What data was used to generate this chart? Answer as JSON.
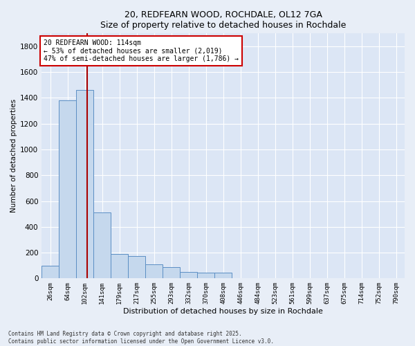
{
  "title_line1": "20, REDFEARN WOOD, ROCHDALE, OL12 7GA",
  "title_line2": "Size of property relative to detached houses in Rochdale",
  "xlabel": "Distribution of detached houses by size in Rochdale",
  "ylabel": "Number of detached properties",
  "footnote1": "Contains HM Land Registry data © Crown copyright and database right 2025.",
  "footnote2": "Contains public sector information licensed under the Open Government Licence v3.0.",
  "categories": [
    "26sqm",
    "64sqm",
    "102sqm",
    "141sqm",
    "179sqm",
    "217sqm",
    "255sqm",
    "293sqm",
    "332sqm",
    "370sqm",
    "408sqm",
    "446sqm",
    "484sqm",
    "523sqm",
    "561sqm",
    "599sqm",
    "637sqm",
    "675sqm",
    "714sqm",
    "752sqm",
    "790sqm"
  ],
  "values": [
    100,
    1380,
    1460,
    510,
    190,
    175,
    110,
    90,
    50,
    45,
    45,
    0,
    0,
    0,
    0,
    0,
    0,
    0,
    0,
    0,
    0
  ],
  "bar_color": "#c5d8ed",
  "bar_edge_color": "#5b8ec4",
  "ylim": [
    0,
    1900
  ],
  "yticks": [
    0,
    200,
    400,
    600,
    800,
    1000,
    1200,
    1400,
    1600,
    1800
  ],
  "vline_x_data": 2.15,
  "vline_color": "#aa0000",
  "annotation_text": "20 REDFEARN WOOD: 114sqm\n← 53% of detached houses are smaller (2,019)\n47% of semi-detached houses are larger (1,786) →",
  "annotation_box_color": "#cc0000",
  "background_color": "#e8eef7",
  "plot_bg_color": "#dce6f5"
}
